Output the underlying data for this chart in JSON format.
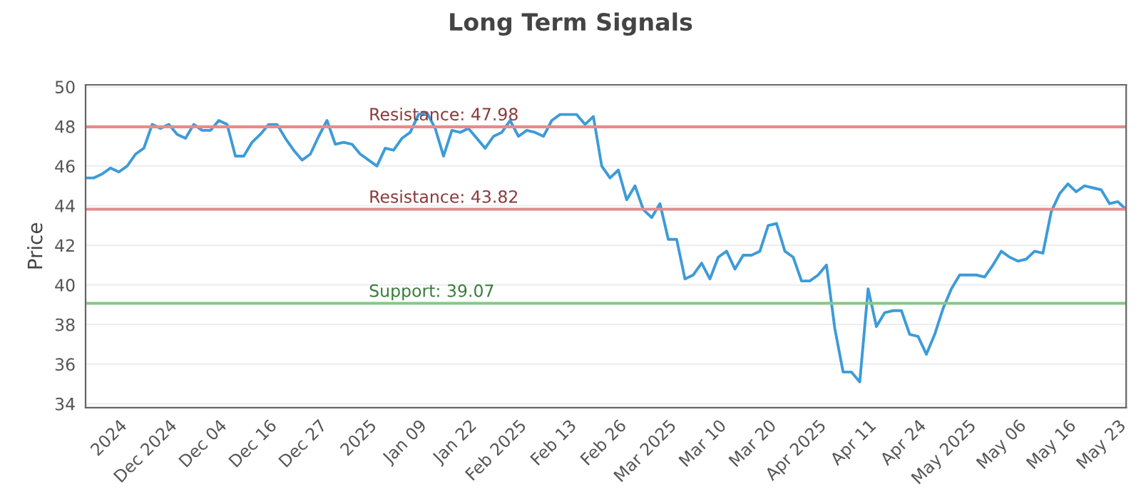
{
  "chart_data": {
    "type": "line",
    "title": "Long Term Signals",
    "ylabel": "Price",
    "categories": [
      null,
      null,
      null,
      null,
      "2024",
      null,
      null,
      null,
      null,
      null,
      "Dec 2024",
      null,
      null,
      null,
      null,
      null,
      "Dec 04",
      null,
      null,
      null,
      null,
      null,
      "Dec 16",
      null,
      null,
      null,
      null,
      null,
      "Dec 27",
      null,
      null,
      null,
      null,
      null,
      "2025",
      null,
      null,
      null,
      null,
      null,
      "Jan 09",
      null,
      null,
      null,
      null,
      null,
      "Jan 22",
      null,
      null,
      null,
      null,
      null,
      "Feb 2025",
      null,
      null,
      null,
      null,
      null,
      "Feb 13",
      null,
      null,
      null,
      null,
      null,
      "Feb 26",
      null,
      null,
      null,
      null,
      null,
      "Mar 2025",
      null,
      null,
      null,
      null,
      null,
      "Mar 10",
      null,
      null,
      null,
      null,
      null,
      "Mar 20",
      null,
      null,
      null,
      null,
      null,
      "Apr 2025",
      null,
      null,
      null,
      null,
      null,
      "Apr 11",
      null,
      null,
      null,
      null,
      null,
      "Apr 24",
      null,
      null,
      null,
      null,
      null,
      "May 2025",
      null,
      null,
      null,
      null,
      null,
      "May 06",
      null,
      null,
      null,
      null,
      null,
      "May 16",
      null,
      null,
      null,
      null,
      null,
      "May 23",
      null
    ],
    "series": [
      {
        "color": "#3d9bd8",
        "values": [
          45.4,
          45.4,
          45.6,
          45.9,
          45.7,
          46.0,
          46.6,
          46.9,
          48.1,
          47.9,
          48.1,
          47.6,
          47.4,
          48.1,
          47.8,
          47.8,
          48.3,
          48.1,
          46.5,
          46.5,
          47.2,
          47.6,
          48.1,
          48.1,
          47.4,
          46.8,
          46.3,
          46.6,
          47.5,
          48.3,
          47.1,
          47.2,
          47.1,
          46.6,
          46.3,
          46.0,
          46.9,
          46.8,
          47.4,
          47.7,
          48.6,
          48.7,
          47.9,
          46.5,
          47.8,
          47.7,
          47.9,
          47.4,
          46.9,
          47.5,
          47.7,
          48.3,
          47.5,
          47.8,
          47.7,
          47.5,
          48.3,
          48.6,
          48.6,
          48.6,
          48.1,
          48.5,
          46.0,
          45.4,
          45.8,
          44.3,
          45.0,
          43.8,
          43.4,
          44.1,
          42.3,
          42.3,
          40.3,
          40.5,
          41.1,
          40.3,
          41.4,
          41.7,
          40.8,
          41.5,
          41.5,
          41.7,
          43.0,
          43.1,
          41.7,
          41.4,
          40.2,
          40.2,
          40.5,
          41.0,
          37.8,
          35.6,
          35.6,
          35.1,
          39.8,
          37.9,
          38.6,
          38.7,
          38.7,
          37.5,
          37.4,
          36.5,
          37.5,
          38.8,
          39.8,
          40.5,
          40.5,
          40.5,
          40.4,
          41.0,
          41.7,
          41.4,
          41.2,
          41.3,
          41.7,
          41.6,
          43.7,
          44.6,
          45.1,
          44.7,
          45.0,
          44.9,
          44.8,
          44.1,
          44.2,
          43.8
        ]
      }
    ],
    "ylim": [
      33.8,
      50.1
    ],
    "yticks": [
      34,
      36,
      38,
      40,
      42,
      44,
      46,
      48,
      50
    ],
    "grid": "y",
    "ref_lines": [
      {
        "axis": "y",
        "value": 47.98,
        "label": "Resistance: 47.98",
        "color": "#e58b8b"
      },
      {
        "axis": "y",
        "value": 43.82,
        "label": "Resistance: 43.82",
        "color": "#e58b8b"
      },
      {
        "axis": "y",
        "value": 39.07,
        "label": "Support: 39.07",
        "color": "#86c786"
      }
    ]
  }
}
